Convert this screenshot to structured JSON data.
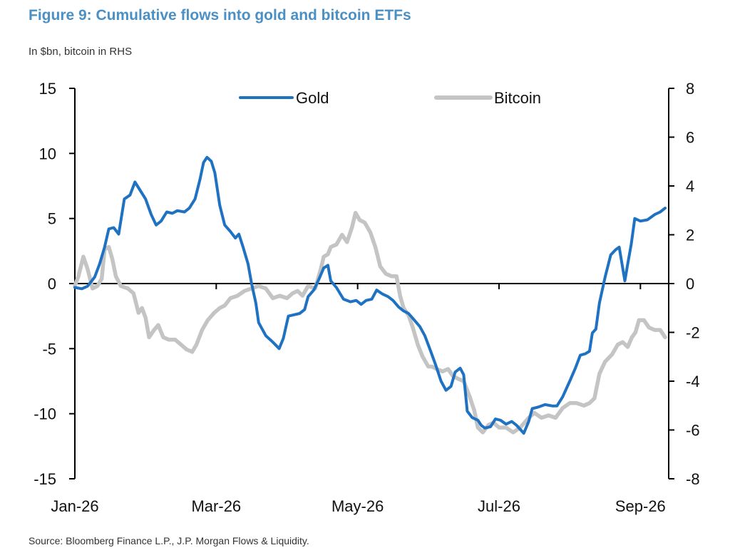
{
  "title": "Figure 9: Cumulative flows into gold and bitcoin ETFs",
  "subtitle": "In $bn, bitcoin in RHS",
  "source": "Source: Bloomberg Finance L.P., J.P. Morgan Flows & Liquidity.",
  "colors": {
    "title": "#4a90c4",
    "gold": "#1f72c2",
    "bitcoin": "#c4c4c4",
    "axis": "#000000"
  },
  "chart_data": {
    "type": "line",
    "x_tick_labels": [
      "Jan-26",
      "Mar-26",
      "May-26",
      "Jul-26",
      "Sep-26"
    ],
    "x_tick_positions": [
      0,
      2,
      4,
      6,
      8
    ],
    "x_range": [
      0,
      8.4
    ],
    "y_left": {
      "range": [
        -15,
        15
      ],
      "ticks": [
        15,
        10,
        5,
        0,
        -5,
        -10,
        -15
      ],
      "tick_labels": [
        "15",
        "10",
        "5",
        "0",
        "-5",
        "-10",
        "-15"
      ]
    },
    "y_right": {
      "range": [
        -8,
        8
      ],
      "ticks": [
        8,
        6,
        4,
        2,
        0,
        -2,
        -4,
        -6,
        -8
      ],
      "tick_labels": [
        "8",
        "6",
        "4",
        "2",
        "0",
        "-2",
        "-4",
        "-6",
        "-8"
      ]
    },
    "legend": {
      "placement": "top-center"
    },
    "series": [
      {
        "name": "Gold",
        "axis": "left",
        "points": [
          [
            0,
            -0.3
          ],
          [
            0.1,
            -0.4
          ],
          [
            0.18,
            -0.2
          ],
          [
            0.28,
            0.5
          ],
          [
            0.35,
            1.5
          ],
          [
            0.42,
            2.8
          ],
          [
            0.48,
            4.2
          ],
          [
            0.55,
            4.3
          ],
          [
            0.62,
            3.8
          ],
          [
            0.7,
            6.5
          ],
          [
            0.78,
            6.8
          ],
          [
            0.85,
            7.8
          ],
          [
            0.92,
            7.2
          ],
          [
            1.0,
            6.5
          ],
          [
            1.08,
            5.3
          ],
          [
            1.15,
            4.5
          ],
          [
            1.22,
            4.8
          ],
          [
            1.3,
            5.5
          ],
          [
            1.38,
            5.4
          ],
          [
            1.45,
            5.6
          ],
          [
            1.55,
            5.5
          ],
          [
            1.62,
            5.8
          ],
          [
            1.7,
            6.5
          ],
          [
            1.77,
            8.0
          ],
          [
            1.82,
            9.3
          ],
          [
            1.87,
            9.7
          ],
          [
            1.93,
            9.4
          ],
          [
            1.98,
            8.5
          ],
          [
            2.05,
            6.0
          ],
          [
            2.12,
            4.5
          ],
          [
            2.2,
            4.0
          ],
          [
            2.27,
            3.5
          ],
          [
            2.32,
            3.8
          ],
          [
            2.38,
            2.8
          ],
          [
            2.45,
            1.5
          ],
          [
            2.5,
            0.0
          ],
          [
            2.56,
            -1.5
          ],
          [
            2.6,
            -3.0
          ],
          [
            2.7,
            -4.0
          ],
          [
            2.8,
            -4.5
          ],
          [
            2.89,
            -5.0
          ],
          [
            2.95,
            -4.2
          ],
          [
            3.02,
            -2.5
          ],
          [
            3.1,
            -2.4
          ],
          [
            3.18,
            -2.3
          ],
          [
            3.25,
            -2.0
          ],
          [
            3.3,
            -1.0
          ],
          [
            3.38,
            -0.5
          ],
          [
            3.45,
            0.3
          ],
          [
            3.52,
            1.2
          ],
          [
            3.58,
            1.4
          ],
          [
            3.62,
            0.2
          ],
          [
            3.7,
            -0.3
          ],
          [
            3.8,
            -1.2
          ],
          [
            3.9,
            -1.4
          ],
          [
            3.98,
            -1.3
          ],
          [
            4.05,
            -1.6
          ],
          [
            4.12,
            -1.3
          ],
          [
            4.2,
            -1.2
          ],
          [
            4.27,
            -0.5
          ],
          [
            4.35,
            -0.8
          ],
          [
            4.43,
            -1.0
          ],
          [
            4.5,
            -1.3
          ],
          [
            4.58,
            -1.8
          ],
          [
            4.65,
            -2.1
          ],
          [
            4.72,
            -2.3
          ],
          [
            4.8,
            -2.8
          ],
          [
            4.88,
            -3.3
          ],
          [
            4.95,
            -4.0
          ],
          [
            5.02,
            -5.0
          ],
          [
            5.1,
            -6.2
          ],
          [
            5.18,
            -7.5
          ],
          [
            5.25,
            -8.2
          ],
          [
            5.32,
            -7.9
          ],
          [
            5.38,
            -6.8
          ],
          [
            5.45,
            -6.5
          ],
          [
            5.5,
            -7.0
          ],
          [
            5.55,
            -9.8
          ],
          [
            5.62,
            -10.3
          ],
          [
            5.7,
            -10.5
          ],
          [
            5.75,
            -10.9
          ],
          [
            5.8,
            -11.1
          ],
          [
            5.88,
            -11.0
          ],
          [
            5.95,
            -10.4
          ],
          [
            6.02,
            -10.5
          ],
          [
            6.1,
            -10.8
          ],
          [
            6.18,
            -10.6
          ],
          [
            6.25,
            -10.9
          ],
          [
            6.35,
            -11.5
          ],
          [
            6.42,
            -10.6
          ],
          [
            6.47,
            -9.6
          ],
          [
            6.55,
            -9.5
          ],
          [
            6.65,
            -9.3
          ],
          [
            6.75,
            -9.4
          ],
          [
            6.82,
            -9.4
          ],
          [
            6.9,
            -8.7
          ],
          [
            7.0,
            -7.5
          ],
          [
            7.08,
            -6.5
          ],
          [
            7.15,
            -5.5
          ],
          [
            7.22,
            -5.4
          ],
          [
            7.28,
            -5.2
          ],
          [
            7.32,
            -3.8
          ],
          [
            7.37,
            -3.5
          ],
          [
            7.42,
            -1.5
          ],
          [
            7.5,
            0.5
          ],
          [
            7.58,
            2.2
          ],
          [
            7.65,
            2.6
          ],
          [
            7.7,
            2.8
          ],
          [
            7.78,
            0.2
          ],
          [
            7.82,
            1.5
          ],
          [
            7.87,
            3.0
          ],
          [
            7.92,
            5.0
          ],
          [
            8.0,
            4.8
          ],
          [
            8.1,
            4.9
          ],
          [
            8.2,
            5.3
          ],
          [
            8.28,
            5.5
          ],
          [
            8.35,
            5.8
          ]
        ]
      },
      {
        "name": "Bitcoin",
        "axis": "right",
        "points": [
          [
            0,
            -0.1
          ],
          [
            0.05,
            0.3
          ],
          [
            0.12,
            1.1
          ],
          [
            0.18,
            0.6
          ],
          [
            0.25,
            -0.2
          ],
          [
            0.32,
            -0.1
          ],
          [
            0.38,
            0.2
          ],
          [
            0.42,
            1.4
          ],
          [
            0.48,
            1.5
          ],
          [
            0.53,
            1.0
          ],
          [
            0.58,
            0.3
          ],
          [
            0.65,
            -0.1
          ],
          [
            0.75,
            -0.2
          ],
          [
            0.83,
            -0.4
          ],
          [
            0.9,
            -1.2
          ],
          [
            0.95,
            -1.0
          ],
          [
            1.0,
            -1.4
          ],
          [
            1.05,
            -2.2
          ],
          [
            1.12,
            -1.9
          ],
          [
            1.18,
            -1.7
          ],
          [
            1.25,
            -2.2
          ],
          [
            1.33,
            -2.3
          ],
          [
            1.42,
            -2.3
          ],
          [
            1.5,
            -2.5
          ],
          [
            1.58,
            -2.7
          ],
          [
            1.66,
            -2.8
          ],
          [
            1.72,
            -2.5
          ],
          [
            1.8,
            -1.9
          ],
          [
            1.88,
            -1.5
          ],
          [
            1.97,
            -1.2
          ],
          [
            2.05,
            -1.0
          ],
          [
            2.12,
            -0.9
          ],
          [
            2.2,
            -0.6
          ],
          [
            2.3,
            -0.5
          ],
          [
            2.4,
            -0.3
          ],
          [
            2.5,
            -0.2
          ],
          [
            2.6,
            -0.1
          ],
          [
            2.7,
            -0.2
          ],
          [
            2.8,
            -0.6
          ],
          [
            2.9,
            -0.5
          ],
          [
            3.0,
            -0.6
          ],
          [
            3.08,
            -0.4
          ],
          [
            3.15,
            -0.3
          ],
          [
            3.22,
            -0.5
          ],
          [
            3.3,
            -0.1
          ],
          [
            3.4,
            -0.2
          ],
          [
            3.48,
            0.6
          ],
          [
            3.52,
            1.1
          ],
          [
            3.58,
            1.2
          ],
          [
            3.62,
            1.5
          ],
          [
            3.7,
            1.6
          ],
          [
            3.78,
            2.0
          ],
          [
            3.85,
            1.7
          ],
          [
            3.92,
            2.3
          ],
          [
            3.97,
            2.9
          ],
          [
            4.03,
            2.6
          ],
          [
            4.1,
            2.5
          ],
          [
            4.18,
            2.1
          ],
          [
            4.25,
            1.5
          ],
          [
            4.32,
            0.7
          ],
          [
            4.4,
            0.4
          ],
          [
            4.48,
            0.3
          ],
          [
            4.55,
            0.3
          ],
          [
            4.6,
            -0.5
          ],
          [
            4.65,
            -1.0
          ],
          [
            4.72,
            -1.3
          ],
          [
            4.78,
            -1.8
          ],
          [
            4.85,
            -2.5
          ],
          [
            4.92,
            -3.0
          ],
          [
            5.0,
            -3.4
          ],
          [
            5.05,
            -3.4
          ],
          [
            5.12,
            -3.5
          ],
          [
            5.2,
            -3.6
          ],
          [
            5.28,
            -3.5
          ],
          [
            5.35,
            -3.8
          ],
          [
            5.42,
            -3.9
          ],
          [
            5.5,
            -4.0
          ],
          [
            5.58,
            -4.6
          ],
          [
            5.65,
            -5.2
          ],
          [
            5.7,
            -5.9
          ],
          [
            5.77,
            -6.1
          ],
          [
            5.85,
            -5.8
          ],
          [
            5.92,
            -5.7
          ],
          [
            6.0,
            -5.9
          ],
          [
            6.1,
            -5.9
          ],
          [
            6.2,
            -6.1
          ],
          [
            6.3,
            -5.9
          ],
          [
            6.42,
            -5.5
          ],
          [
            6.5,
            -5.3
          ],
          [
            6.6,
            -5.5
          ],
          [
            6.7,
            -5.4
          ],
          [
            6.8,
            -5.5
          ],
          [
            6.9,
            -5.1
          ],
          [
            7.0,
            -4.9
          ],
          [
            7.1,
            -4.9
          ],
          [
            7.2,
            -5.0
          ],
          [
            7.28,
            -4.9
          ],
          [
            7.35,
            -4.7
          ],
          [
            7.42,
            -3.7
          ],
          [
            7.5,
            -3.2
          ],
          [
            7.6,
            -2.9
          ],
          [
            7.68,
            -2.5
          ],
          [
            7.75,
            -2.4
          ],
          [
            7.82,
            -2.6
          ],
          [
            7.88,
            -2.2
          ],
          [
            7.93,
            -2.0
          ],
          [
            7.98,
            -1.5
          ],
          [
            8.05,
            -1.5
          ],
          [
            8.12,
            -1.8
          ],
          [
            8.2,
            -1.9
          ],
          [
            8.28,
            -1.9
          ],
          [
            8.35,
            -2.2
          ]
        ]
      }
    ]
  }
}
